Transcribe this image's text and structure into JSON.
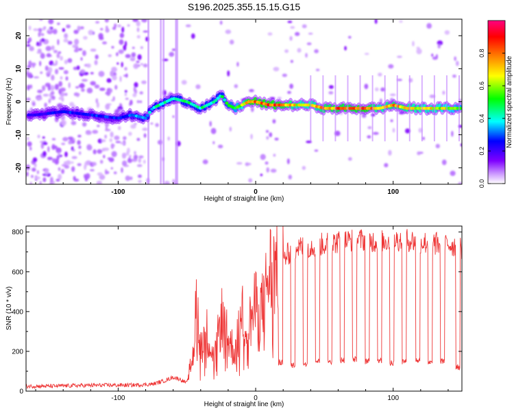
{
  "figure_title": "S196.2025.355.15.15.G15",
  "chart_data": [
    {
      "type": "heatmap",
      "title": "S196.2025.355.15.15.G15",
      "xlabel": "Height of straight line (km)",
      "ylabel": "Frequency (Hz)",
      "xlim": [
        -167,
        150
      ],
      "ylim": [
        -25,
        25
      ],
      "xticks": [
        -100,
        0,
        100
      ],
      "yticks": [
        -20,
        -10,
        0,
        10,
        20
      ],
      "colorbar": {
        "label": "Normalized spectral amplitude",
        "range": [
          0,
          1
        ],
        "ticks": [
          0.0,
          0.2,
          0.4,
          0.6,
          0.8
        ],
        "colormap": [
          "#ffffff",
          "#cc99ff",
          "#7f00ff",
          "#0000ff",
          "#00ffff",
          "#00ff00",
          "#ffff00",
          "#ff8000",
          "#ff0000",
          "#ff0080"
        ]
      },
      "ridge": {
        "description": "dominant frequency trace vs height",
        "x": [
          -160,
          -140,
          -120,
          -100,
          -90,
          -80,
          -75,
          -70,
          -60,
          -50,
          -40,
          -35,
          -30,
          -25,
          -20,
          -15,
          -10,
          -5,
          0,
          10,
          20,
          30,
          40,
          50,
          60,
          70,
          80,
          90,
          100,
          110,
          120,
          130,
          140,
          150
        ],
        "y": [
          -4,
          -3,
          -4,
          -5,
          -4,
          -5,
          -2,
          -1,
          1,
          0,
          -2,
          -1,
          0,
          2,
          -1,
          -2,
          -1,
          0,
          0,
          -1,
          -1,
          -1,
          -1,
          -2,
          -2,
          -2,
          -2,
          -2,
          -1,
          -2,
          -2,
          -2,
          -2,
          -2
        ],
        "amplitude": [
          0.25,
          0.3,
          0.3,
          0.3,
          0.35,
          0.4,
          0.45,
          0.5,
          0.5,
          0.5,
          0.5,
          0.5,
          0.5,
          0.5,
          0.55,
          0.6,
          0.7,
          0.95,
          0.95,
          0.95,
          0.9,
          0.75,
          0.75,
          0.85,
          0.9,
          0.9,
          0.95,
          0.75,
          0.85,
          0.8,
          0.75,
          0.75,
          0.7,
          0.6
        ]
      }
    },
    {
      "type": "line",
      "xlabel": "Height of straight line (km)",
      "ylabel": "SNR (10 * v/v)",
      "xlim": [
        -167,
        150
      ],
      "ylim": [
        0,
        830
      ],
      "xticks": [
        -100,
        0,
        100
      ],
      "yticks": [
        0,
        200,
        400,
        600,
        800
      ],
      "series": [
        {
          "name": "SNR",
          "color": "#ee3333",
          "x": [
            -167,
            -150,
            -130,
            -110,
            -90,
            -75,
            -70,
            -65,
            -60,
            -55,
            -50,
            -45,
            -43,
            -40,
            -35,
            -30,
            -25,
            -20,
            -15,
            -10,
            -5,
            0,
            5,
            10,
            15,
            20,
            25,
            30,
            40,
            50,
            60,
            70,
            80,
            90,
            100,
            110,
            120,
            130,
            140,
            150
          ],
          "y": [
            25,
            25,
            28,
            30,
            30,
            35,
            45,
            55,
            70,
            60,
            40,
            200,
            460,
            240,
            300,
            150,
            380,
            260,
            200,
            380,
            330,
            430,
            420,
            600,
            620,
            660,
            700,
            720,
            730,
            740,
            750,
            760,
            760,
            750,
            760,
            760,
            750,
            740,
            740,
            720
          ],
          "dropouts": {
            "description": "periodic sharp drops to low SNR",
            "x": [
              18,
              27,
              36,
              45,
              54,
              63,
              72,
              81,
              90,
              99,
              108,
              118,
              127,
              136,
              147
            ],
            "y": [
              145,
              130,
              140,
              150,
              150,
              155,
              160,
              150,
              155,
              140,
              150,
              155,
              140,
              150,
              120
            ]
          }
        }
      ]
    }
  ]
}
